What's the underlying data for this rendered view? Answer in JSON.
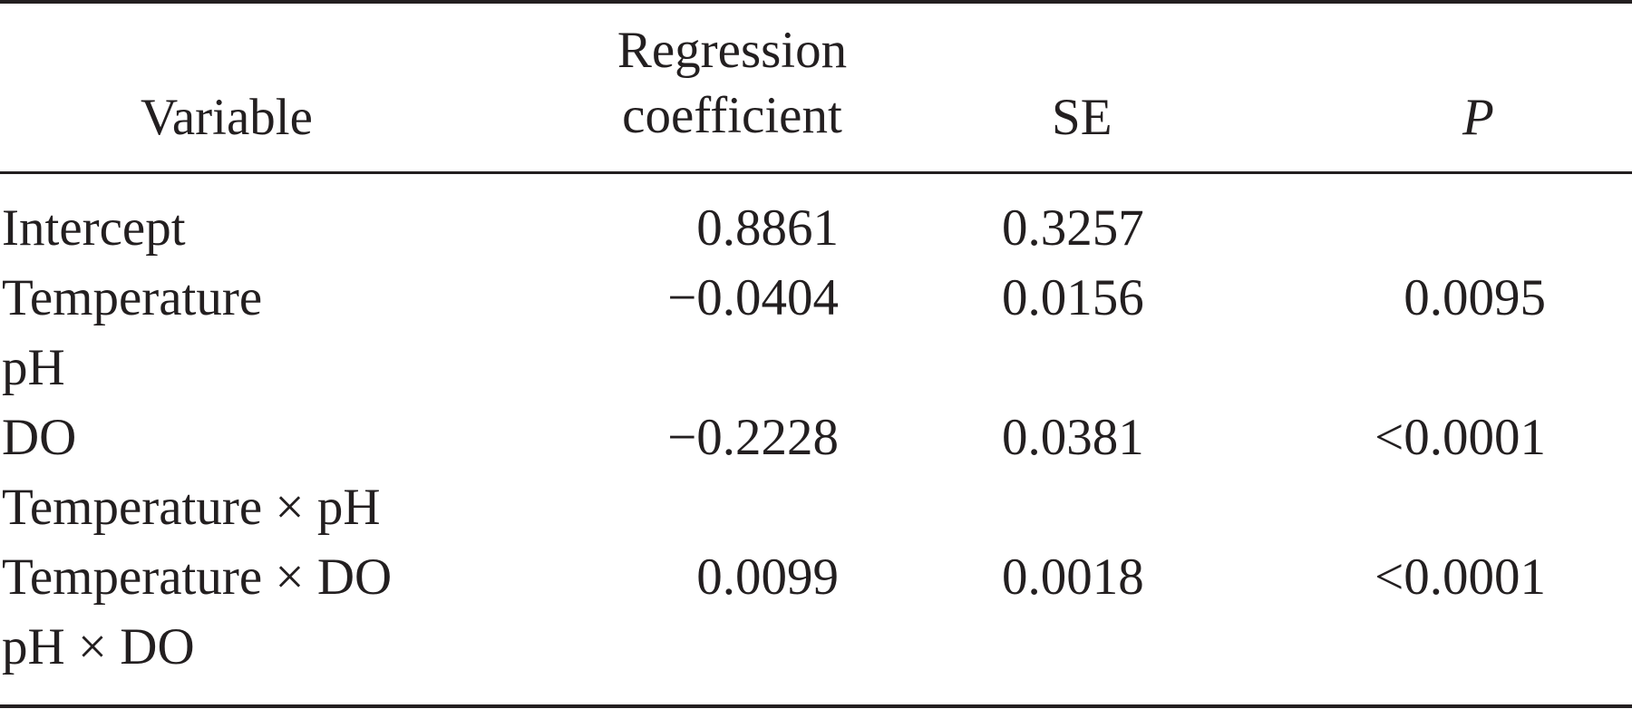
{
  "table": {
    "headers": {
      "variable": "Variable",
      "coefficient_line1": "Regression",
      "coefficient_line2": "coefficient",
      "se": "SE",
      "p": "P"
    },
    "rows": [
      {
        "variable": "Intercept",
        "coefficient": "0.8861",
        "se": "0.3257",
        "p": ""
      },
      {
        "variable": "Temperature",
        "coefficient": "−0.0404",
        "se": "0.0156",
        "p": "0.0095"
      },
      {
        "variable": "pH",
        "coefficient": "",
        "se": "",
        "p": ""
      },
      {
        "variable": "DO",
        "coefficient": "−0.2228",
        "se": "0.0381",
        "p": "<0.0001"
      },
      {
        "variable": "Temperature × pH",
        "coefficient": "",
        "se": "",
        "p": ""
      },
      {
        "variable": "Temperature × DO",
        "coefficient": "0.0099",
        "se": "0.0018",
        "p": "<0.0001"
      },
      {
        "variable": "pH × DO",
        "coefficient": "",
        "se": "",
        "p": ""
      }
    ]
  }
}
